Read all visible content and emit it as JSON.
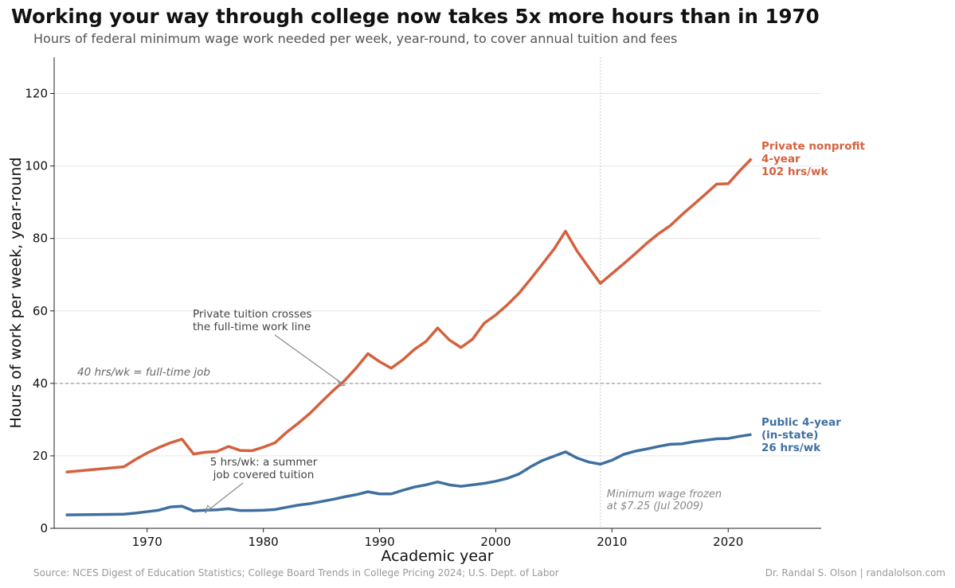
{
  "title": "Working your way through college now takes 5x more hours than in 1970",
  "subtitle": "Hours of federal minimum wage work needed per week, year-round, to cover annual tuition and fees",
  "source": "Source: NCES Digest of Education Statistics; College Board Trends in College Pricing 2024; U.S. Dept. of Labor",
  "credit": "Dr. Randal S. Olson  |  randalolson.com",
  "chart_data": {
    "type": "line",
    "xlabel": "Academic year",
    "ylabel": "Hours of work per week, year-round",
    "xlim": [
      1962,
      2028
    ],
    "ylim": [
      0,
      130
    ],
    "xticks": [
      1970,
      1980,
      1990,
      2000,
      2010,
      2020
    ],
    "yticks": [
      0,
      20,
      40,
      60,
      80,
      100,
      120
    ],
    "grid": "horizontal",
    "x": [
      1963,
      1968,
      1969,
      1970,
      1971,
      1972,
      1973,
      1974,
      1975,
      1976,
      1977,
      1978,
      1979,
      1980,
      1981,
      1982,
      1983,
      1984,
      1985,
      1986,
      1987,
      1988,
      1989,
      1990,
      1991,
      1992,
      1993,
      1994,
      1995,
      1996,
      1997,
      1998,
      1999,
      2000,
      2001,
      2002,
      2003,
      2004,
      2005,
      2006,
      2007,
      2008,
      2009,
      2010,
      2011,
      2012,
      2013,
      2014,
      2015,
      2016,
      2017,
      2018,
      2019,
      2020,
      2021,
      2022
    ],
    "series": [
      {
        "name": "Private nonprofit 4-year",
        "end_label": "102 hrs/wk",
        "color": "#d4613e",
        "values": [
          15.5,
          17,
          19,
          20.8,
          22.3,
          23.6,
          24.6,
          20.5,
          21,
          21.2,
          22.6,
          21.5,
          21.4,
          22.4,
          23.6,
          26.5,
          29,
          31.7,
          34.9,
          38,
          40.8,
          44.3,
          48.2,
          46,
          44.2,
          46.5,
          49.4,
          51.6,
          55.3,
          52,
          49.9,
          52.2,
          56.6,
          58.9,
          61.7,
          64.9,
          68.8,
          72.9,
          77,
          82,
          76.5,
          72,
          67.6,
          70.3,
          73,
          75.8,
          78.7,
          81.3,
          83.5,
          86.5,
          89.3,
          92.1,
          95,
          95.1,
          98.7,
          102
        ]
      },
      {
        "name": "Public 4-year (in-state)",
        "end_label": "26 hrs/wk",
        "color": "#3f6f9f",
        "values": [
          3.7,
          3.9,
          4.2,
          4.6,
          5,
          5.9,
          6.1,
          4.8,
          5,
          5.1,
          5.4,
          4.9,
          4.9,
          5,
          5.2,
          5.8,
          6.4,
          6.8,
          7.4,
          8,
          8.7,
          9.3,
          10.1,
          9.5,
          9.5,
          10.5,
          11.4,
          12,
          12.8,
          12,
          11.6,
          12,
          12.4,
          13,
          13.8,
          15,
          17,
          18.7,
          19.9,
          21.1,
          19.4,
          18.3,
          17.7,
          18.8,
          20.4,
          21.3,
          21.9,
          22.6,
          23.2,
          23.3,
          23.9,
          24.3,
          24.7,
          24.8,
          25.4,
          25.9
        ]
      }
    ],
    "reference_line": {
      "y": 40,
      "label": "40 hrs/wk = full-time job"
    },
    "vertical_line": {
      "x": 2009,
      "label": [
        "Minimum wage frozen",
        "at $7.25 (Jul 2009)"
      ]
    },
    "annotations": [
      {
        "text": [
          "Private tuition crosses",
          "the full-time work line"
        ],
        "point": [
          1987,
          40.8
        ]
      },
      {
        "text": [
          "5 hrs/wk: a summer",
          "job covered tuition"
        ],
        "point": [
          1975,
          5
        ]
      }
    ],
    "series_labels": [
      [
        "Private nonprofit",
        "4-year",
        "102 hrs/wk"
      ],
      [
        "Public 4-year",
        "(in-state)",
        "26 hrs/wk"
      ]
    ]
  }
}
